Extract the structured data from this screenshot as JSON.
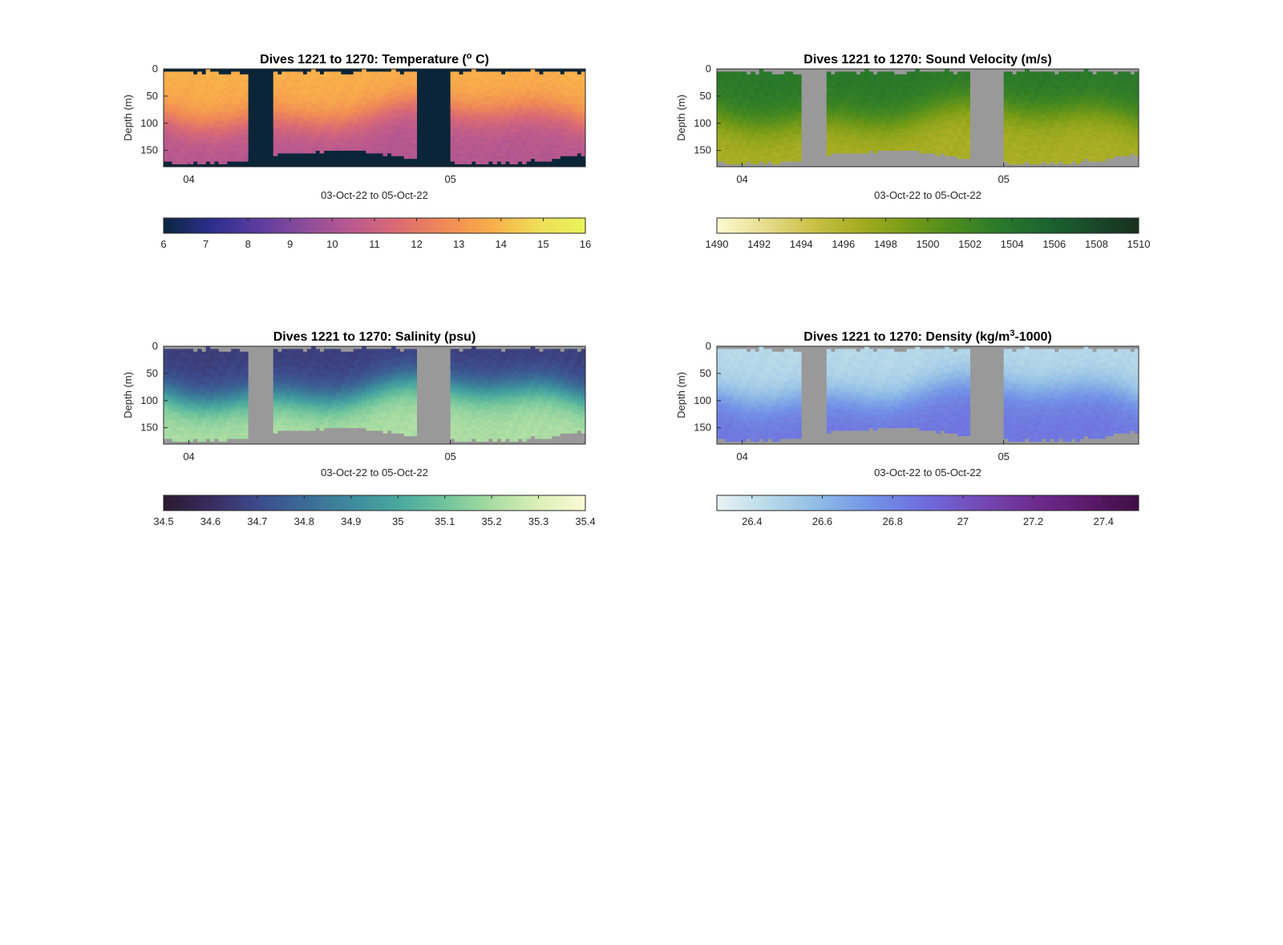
{
  "x_axis": {
    "label": "03-Oct-22 to 05-Oct-22",
    "ticks": [
      "04",
      "05"
    ]
  },
  "y_axis": {
    "label": "Depth (m)",
    "ticks": [
      0,
      50,
      100,
      150
    ],
    "range": [
      0,
      180
    ],
    "reversed": true
  },
  "background_color": "#999999",
  "chart_data": [
    {
      "type": "heatmap",
      "id": "temperature",
      "title_main": "Dives 1221 to 1270: Temperature (",
      "title_sup": "o",
      "title_end": " C)",
      "colorbar": {
        "min": 6,
        "max": 16,
        "ticks": [
          "6",
          "7",
          "8",
          "9",
          "10",
          "11",
          "12",
          "13",
          "14",
          "15",
          "16"
        ],
        "colors": [
          "#0b2540",
          "#2b2f8c",
          "#5a3c9e",
          "#8b4d9b",
          "#b9598f",
          "#dc6b72",
          "#f08a56",
          "#f9ae4a",
          "#eedf58",
          "#e9f35a"
        ]
      },
      "nodata_color": "#0a2538",
      "gaps": [
        [
          0.2,
          0.26
        ],
        [
          0.6,
          0.68
        ]
      ],
      "surface_value": 13.8,
      "bottom_value": 10.3
    },
    {
      "type": "heatmap",
      "id": "sound-velocity",
      "title_main": "Dives 1221 to 1270: Sound Velocity (m/s)",
      "title_sup": "",
      "title_end": "",
      "colorbar": {
        "min": 1490,
        "max": 1510,
        "ticks": [
          "1490",
          "1492",
          "1494",
          "1496",
          "1498",
          "1500",
          "1502",
          "1504",
          "1506",
          "1508",
          "1510"
        ],
        "colors": [
          "#fdfbd3",
          "#e8dd90",
          "#cbc24a",
          "#a7ad22",
          "#7a9c17",
          "#4d8c1e",
          "#2a7a2a",
          "#1c6530",
          "#1a4a2a",
          "#18301f"
        ]
      },
      "nodata_color": "#999999",
      "gaps": [
        [
          0.2,
          0.26
        ],
        [
          0.6,
          0.68
        ]
      ],
      "surface_value": 1503.5,
      "bottom_value": 1496.5
    },
    {
      "type": "heatmap",
      "id": "salinity",
      "title_main": "Dives 1221 to 1270: Salinity (psu)",
      "title_sup": "",
      "title_end": "",
      "colorbar": {
        "min": 34.5,
        "max": 35.4,
        "ticks": [
          "34.5",
          "34.6",
          "34.7",
          "34.8",
          "34.9",
          "35",
          "35.1",
          "35.2",
          "35.3",
          "35.4"
        ],
        "colors": [
          "#2a1a30",
          "#3a2c5e",
          "#3d4a8c",
          "#3b6a96",
          "#3d8a9c",
          "#49a89e",
          "#70c49c",
          "#a9dca2",
          "#dcf0b8",
          "#fbfad6"
        ]
      },
      "nodata_color": "#999999",
      "gaps": [
        [
          0.2,
          0.26
        ],
        [
          0.6,
          0.68
        ]
      ],
      "surface_value": 34.66,
      "bottom_value": 35.21
    },
    {
      "type": "heatmap",
      "id": "density",
      "title_main": "Dives 1221 to 1270: Density (kg/m",
      "title_sup": "3",
      "title_end": "-1000)",
      "colorbar": {
        "min": 26.3,
        "max": 27.5,
        "ticks": [
          "26.4",
          "26.6",
          "26.8",
          "27",
          "27.2",
          "27.4"
        ],
        "colors": [
          "#e9f3f5",
          "#b7d9e8",
          "#8cb9e6",
          "#7290e6",
          "#6f6adb",
          "#7349b5",
          "#6e2d90",
          "#5c1a6c",
          "#3f0f45"
        ]
      },
      "nodata_color": "#999999",
      "gaps": [
        [
          0.2,
          0.26
        ],
        [
          0.6,
          0.68
        ]
      ],
      "surface_value": 26.45,
      "bottom_value": 26.85
    }
  ]
}
